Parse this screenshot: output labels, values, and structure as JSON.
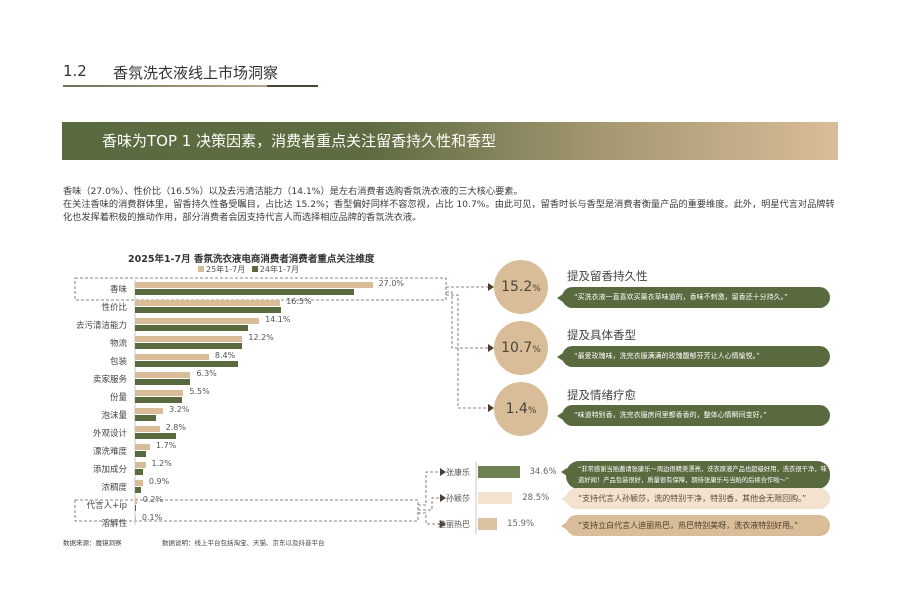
{
  "section": {
    "number": "1.2",
    "title": "香氛洗衣液线上市场洞察"
  },
  "banner": "香味为TOP 1 决策因素，消费者重点关注留香持久性和香型",
  "paragraph": [
    "香味（27.0%）、性价比（16.5%）以及去污清洁能力（14.1%）是左右消费者选购香氛洗衣液的三大核心要素。",
    "在关注香味的消费群体里，留香持久性备受瞩目，占比达 15.2%；香型偏好同样不容忽视，占比 10.7%。由此可见，留香时长与香型是消费者衡量产品的重要维度。此外，明星代言对品牌转化也发挥着积极的推动作用，部分消费者会因支持代言人而选择相应品牌的香氛洗衣液。"
  ],
  "chart_data": {
    "type": "bar",
    "orientation": "horizontal",
    "title": "2025年1-7月 香氛洗衣液电商消费者消费者重点关注维度",
    "legend_position": "top",
    "categories": [
      "香味",
      "性价比",
      "去污清洁能力",
      "物流",
      "包装",
      "卖家服务",
      "份量",
      "泡沫量",
      "外观设计",
      "漂洗难度",
      "添加成分",
      "浓稠度",
      "代言人+ip",
      "溶解性"
    ],
    "series": [
      {
        "name": "25年1-7月",
        "color": "#d9bd98",
        "values": [
          27.0,
          16.5,
          14.1,
          12.2,
          8.4,
          6.3,
          5.5,
          3.2,
          2.8,
          1.7,
          1.2,
          0.9,
          0.2,
          0.1
        ],
        "labels": [
          "27.0%",
          "16.5%",
          "14.1%",
          "12.2%",
          "8.4%",
          "6.3%",
          "5.5%",
          "3.2%",
          "2.8%",
          "1.7%",
          "1.2%",
          "0.9%",
          "0.2%",
          "0.1%"
        ]
      },
      {
        "name": "24年1-7月",
        "color": "#5a6a3f",
        "values": [
          24.9,
          16.6,
          12.8,
          12.2,
          11.7,
          6.3,
          5.3,
          2.4,
          4.7,
          1.3,
          0.9,
          0.7,
          0.1,
          0
        ]
      }
    ],
    "xlim": [
      0,
      30
    ]
  },
  "insights": [
    {
      "value": "15.2",
      "unit": "%",
      "title": "提及留香持久性",
      "quote": "“买洗衣液一直喜欢买薰衣草味道的，香味不刺激，留香还十分持久。”"
    },
    {
      "value": "10.7",
      "unit": "%",
      "title": "提及具体香型",
      "quote": "“最爱玫瑰味，洗完衣服满满的玫瑰馥郁芬芳让人心情愉悦。”"
    },
    {
      "value": "1.4",
      "unit": "%",
      "title": "提及情绪疗愈",
      "quote": "“味道特别香，洗完衣服房间里都香香的，整体心情瞬间变好。”"
    }
  ],
  "stars": [
    {
      "name": "张康乐",
      "value": 34.6,
      "label": "34.6%",
      "color": "#6f8150",
      "quote": "“非常感谢当贻邀请张康乐～周边很精美漂亮，洗衣原液产品也超级好用，洗衣很干净，味道好闻！产品包装很好，质量很有保障，期待张康乐与当贻的后续合作啦～”"
    },
    {
      "name": "孙颖莎",
      "value": 28.5,
      "label": "28.5%",
      "color": "#f2e2cf",
      "quote": "“支持代言人孙颖莎，洗的特别干净，特别香，其他会无限回购。”"
    },
    {
      "name": "迪丽热巴",
      "value": 15.9,
      "label": "15.9%",
      "color": "#dcc2a0",
      "quote": "“支持立白代言人迪丽热巴，热巴特别美呀，洗衣液特别好用。”"
    }
  ],
  "footer": {
    "source": "数据来源：魔镜洞察",
    "note": "数据说明：线上平台包括淘宝、天猫、京东以及抖音平台"
  }
}
